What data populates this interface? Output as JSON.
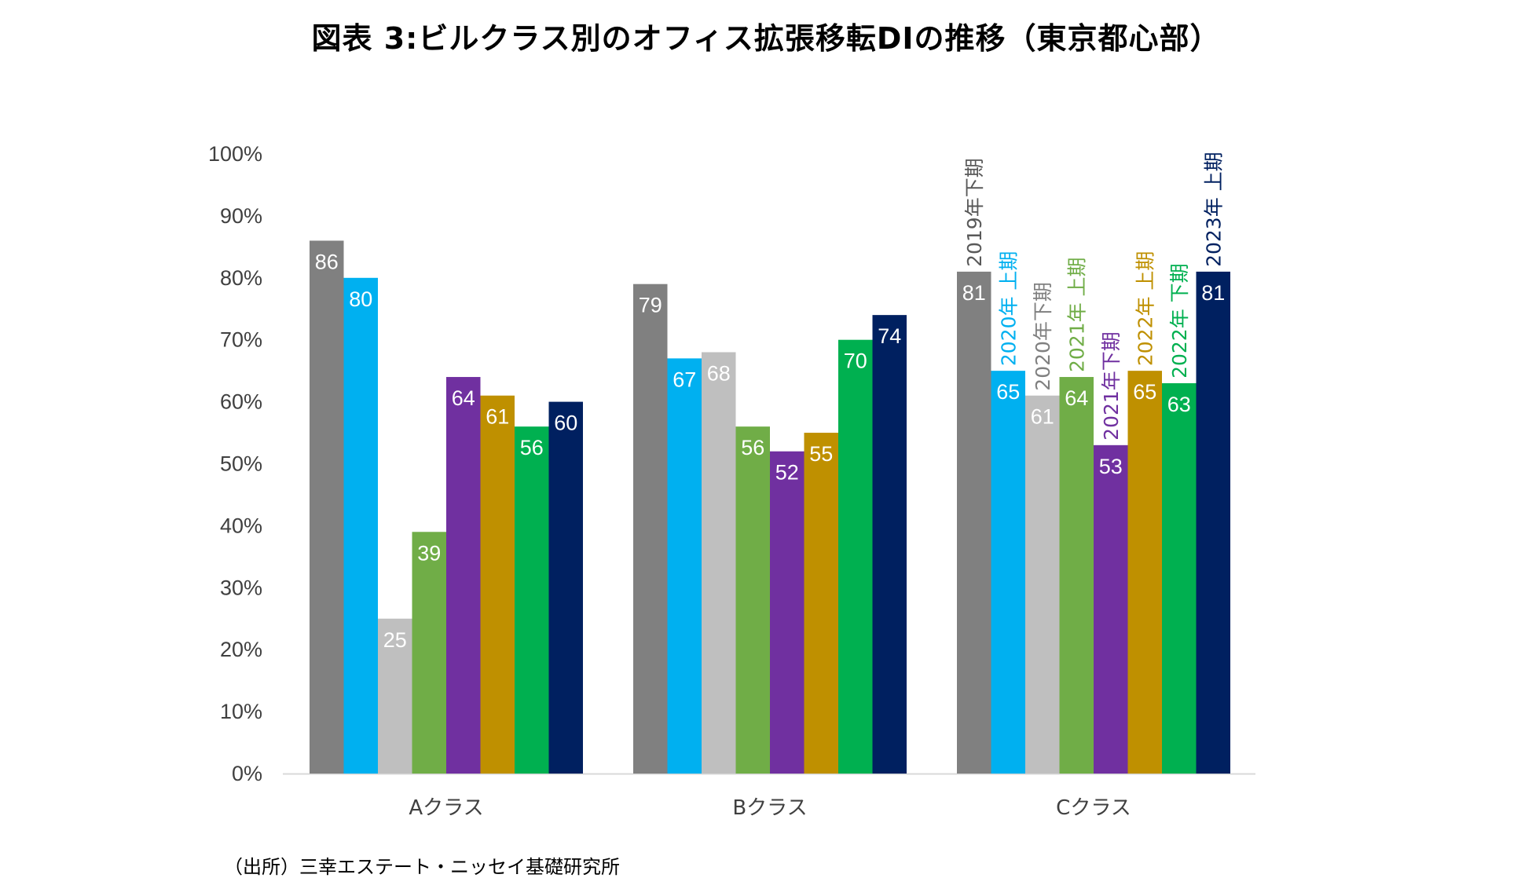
{
  "title": "図表 3:ビルクラス別のオフィス拡張移転DIの推移（東京都心部）",
  "source": "（出所）三幸エステート・ニッセイ基礎研究所",
  "chart_data": {
    "type": "bar",
    "title": "図表 3:ビルクラス別のオフィス拡張移転DIの推移（東京都心部）",
    "xlabel": "",
    "ylabel": "",
    "ylim": [
      0,
      100
    ],
    "ytick_labels": [
      "0%",
      "10%",
      "20%",
      "30%",
      "40%",
      "50%",
      "60%",
      "70%",
      "80%",
      "90%",
      "100%"
    ],
    "categories": [
      "Aクラス",
      "Bクラス",
      "Cクラス"
    ],
    "series": [
      {
        "name": "2019年下期",
        "color": "#808080",
        "label_color": "#595959",
        "values": [
          86,
          79,
          81
        ]
      },
      {
        "name": "2020年 上期",
        "color": "#00b0f0",
        "label_color": "#00b0f0",
        "values": [
          80,
          67,
          65
        ]
      },
      {
        "name": "2020年下期",
        "color": "#bfbfbf",
        "label_color": "#808080",
        "values": [
          25,
          68,
          61
        ]
      },
      {
        "name": "2021年 上期",
        "color": "#70ad47",
        "label_color": "#70ad47",
        "values": [
          39,
          56,
          64
        ]
      },
      {
        "name": "2021年下期",
        "color": "#7030a0",
        "label_color": "#7030a0",
        "values": [
          64,
          52,
          53
        ]
      },
      {
        "name": "2022年 上期",
        "color": "#bf9000",
        "label_color": "#bf9000",
        "values": [
          61,
          55,
          65
        ]
      },
      {
        "name": "2022年 下期",
        "color": "#00b050",
        "label_color": "#00b050",
        "values": [
          56,
          70,
          63
        ]
      },
      {
        "name": "2023年 上期",
        "color": "#002060",
        "label_color": "#002060",
        "values": [
          60,
          74,
          81
        ]
      }
    ],
    "series_labels_on_category": "Cクラス",
    "grid": false
  }
}
